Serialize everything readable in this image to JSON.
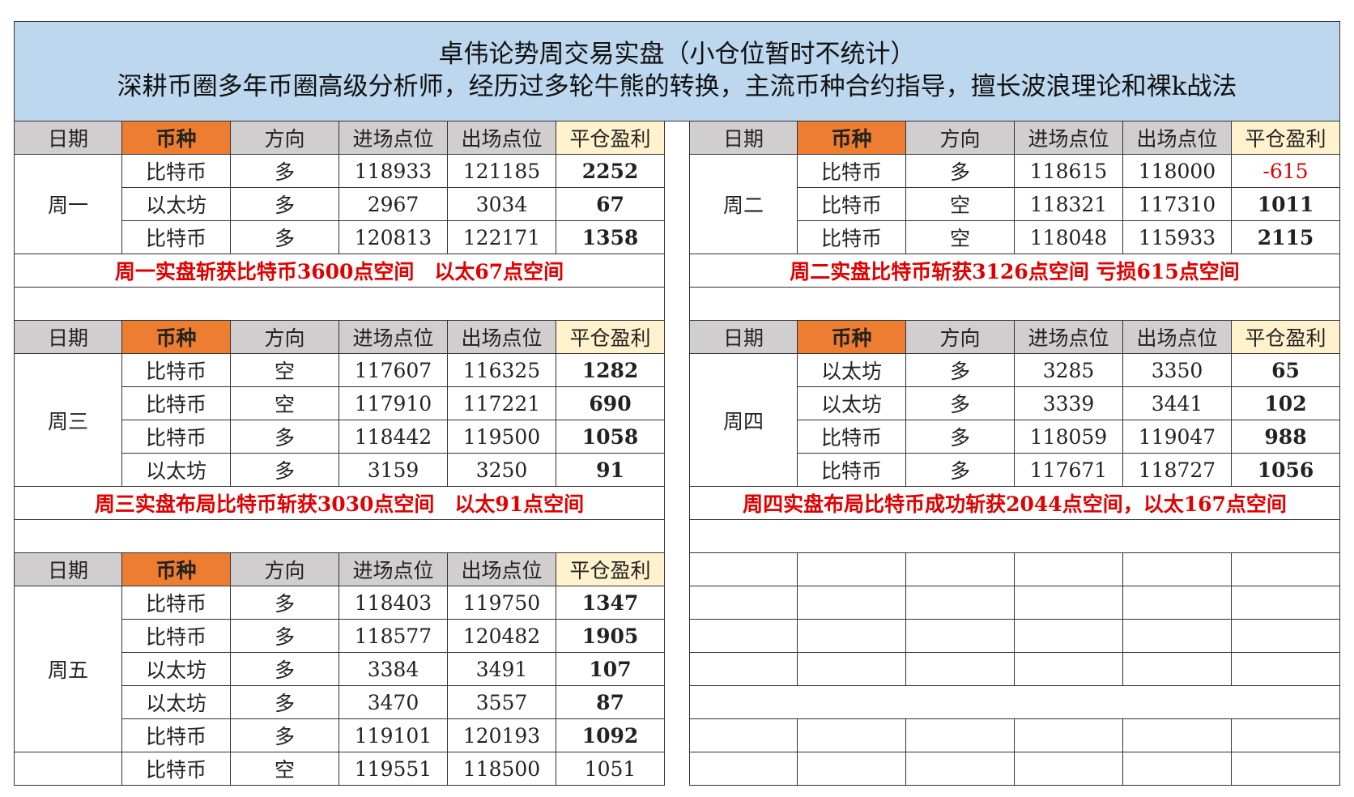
{
  "title": "卓伟论势周交易实盘（小仓位暂时不统计）",
  "subtitle": "深耕币圈多年币圈高级分析师，经历过多轮牛熊的转换，主流币种合约指导，擅长波浪理论和裸k战法",
  "headers": [
    "日期",
    "币种",
    "方向",
    "进场点位",
    "出场点位",
    "平仓盈利"
  ],
  "blocks": [
    {
      "day": "周一",
      "rows": [
        [
          "比特币",
          "多",
          118933,
          121185,
          2252
        ],
        [
          "以太坊",
          "多",
          2967,
          3034,
          67
        ],
        [
          "比特币",
          "多",
          120813,
          122171,
          1358
        ]
      ],
      "summary": "周一实盘斩获比特币3600点空间　以太67点空间"
    },
    {
      "day": "周二",
      "rows": [
        [
          "比特币",
          "多",
          118615,
          118000,
          -615
        ],
        [
          "比特币",
          "空",
          118321,
          117310,
          1011
        ],
        [
          "比特币",
          "空",
          118048,
          115933,
          2115
        ]
      ],
      "summary": "周二实盘比特币斩获3126点空间  亏损615点空间"
    },
    {
      "day": "周三",
      "rows": [
        [
          "比特币",
          "空",
          117607,
          116325,
          1282
        ],
        [
          "比特币",
          "空",
          117910,
          117221,
          690
        ],
        [
          "比特币",
          "多",
          118442,
          119500,
          1058
        ],
        [
          "以太坊",
          "多",
          3159,
          3250,
          91
        ]
      ],
      "summary": "周三实盘布局比特币斩获3030点空间　以太91点空间"
    },
    {
      "day": "周四",
      "rows": [
        [
          "以太坊",
          "多",
          3285,
          3350,
          65
        ],
        [
          "以太坊",
          "多",
          3339,
          3441,
          102
        ],
        [
          "比特币",
          "多",
          118059,
          119047,
          988
        ],
        [
          "比特币",
          "多",
          117671,
          118727,
          1056
        ]
      ],
      "summary": "周四实盘布局比特币成功斩获2044点空间，以太167点空间"
    },
    {
      "day": "周五",
      "rows": [
        [
          "比特币",
          "多",
          118403,
          119750,
          1347
        ],
        [
          "比特币",
          "多",
          118577,
          120482,
          1905
        ],
        [
          "以太坊",
          "多",
          3384,
          3491,
          107
        ],
        [
          "以太坊",
          "多",
          3470,
          3557,
          87
        ],
        [
          "比特币",
          "多",
          119101,
          120193,
          1092
        ]
      ]
    },
    {
      "rows": [
        [
          "比特币",
          "空",
          119551,
          118500,
          1051
        ]
      ]
    }
  ]
}
